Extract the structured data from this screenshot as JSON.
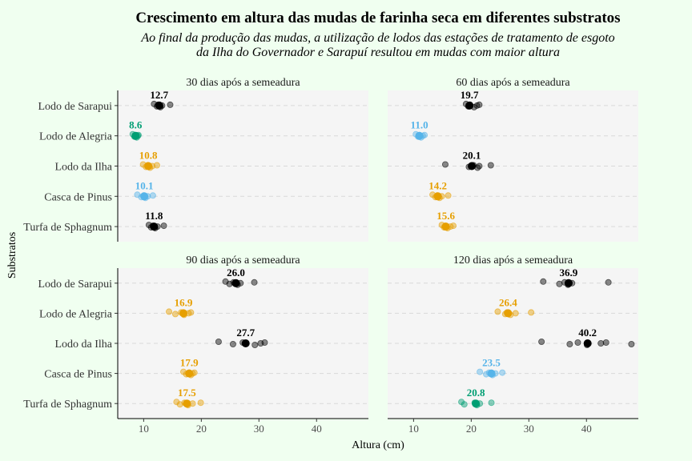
{
  "chart_data": {
    "type": "scatter",
    "title": "Crescimento em altura das mudas de farinha seca em diferentes substratos",
    "subtitle_lines": [
      "Ao final da produção das mudas, a utilização de lodos das estações de tratamento de esgoto",
      "da Ilha do Governador e Sarapuí resultou em mudas com maior altura"
    ],
    "xlabel": "Altura (cm)",
    "ylabel": "Substratos",
    "xlim": [
      5.5,
      49
    ],
    "xticks": [
      10,
      20,
      30,
      40
    ],
    "categories": [
      "Lodo de Sarapui",
      "Lodo de Alegria",
      "Lodo da Ilha",
      "Casca de Pinus",
      "Turfa de Sphagnum"
    ],
    "grid": "horizontal dashed",
    "colors": {
      "black": "#000000",
      "green": "#009E73",
      "orange": "#E69F00",
      "blue": "#56B4E9"
    },
    "panels": [
      {
        "label": "30 dias após a semeadura",
        "groups": [
          {
            "category": "Lodo de Sarapui",
            "mean": 12.7,
            "mean_label": "12.7",
            "color": "black",
            "points": [
              11.8,
              12.3,
              12.5,
              12.9,
              13.2,
              14.6
            ]
          },
          {
            "category": "Lodo de Alegria",
            "mean": 8.6,
            "mean_label": "8.6",
            "color": "green",
            "points": [
              8.1,
              8.4,
              8.6,
              8.8,
              9.0,
              9.1
            ]
          },
          {
            "category": "Lodo da Ilha",
            "mean": 10.8,
            "mean_label": "10.8",
            "color": "orange",
            "points": [
              9.9,
              10.4,
              10.7,
              11.1,
              11.5,
              12.3
            ]
          },
          {
            "category": "Casca de Pinus",
            "mean": 10.1,
            "mean_label": "10.1",
            "color": "blue",
            "points": [
              8.9,
              9.6,
              10.0,
              10.3,
              10.7,
              11.6
            ]
          },
          {
            "category": "Turfa de Sphagnum",
            "mean": 11.8,
            "mean_label": "11.8",
            "color": "black",
            "points": [
              10.9,
              11.3,
              11.6,
              12.0,
              12.4,
              13.5
            ]
          }
        ]
      },
      {
        "label": "60 dias após a semeadura",
        "groups": [
          {
            "category": "Lodo de Sarapui",
            "mean": 19.7,
            "mean_label": "19.7",
            "color": "black",
            "points": [
              19.1,
              19.5,
              19.8,
              20.5,
              21.0,
              21.4
            ]
          },
          {
            "category": "Lodo de Alegria",
            "mean": 11.0,
            "mean_label": "11.0",
            "color": "blue",
            "points": [
              10.4,
              10.8,
              11.0,
              11.3,
              11.6,
              11.9
            ]
          },
          {
            "category": "Lodo da Ilha",
            "mean": 20.1,
            "mean_label": "20.1",
            "color": "black",
            "points": [
              15.5,
              19.6,
              20.4,
              21.1,
              21.4,
              23.4
            ]
          },
          {
            "category": "Casca de Pinus",
            "mean": 14.2,
            "mean_label": "14.2",
            "color": "orange",
            "points": [
              13.3,
              13.8,
              14.1,
              14.5,
              14.9,
              16.0
            ]
          },
          {
            "category": "Turfa de Sphagnum",
            "mean": 15.6,
            "mean_label": "15.6",
            "color": "orange",
            "points": [
              14.9,
              15.3,
              15.5,
              15.9,
              16.4,
              16.9
            ]
          }
        ]
      },
      {
        "label": "90 dias após a semeadura",
        "groups": [
          {
            "category": "Lodo de Sarapui",
            "mean": 26.0,
            "mean_label": "26.0",
            "color": "black",
            "points": [
              24.2,
              24.9,
              25.6,
              26.3,
              26.8,
              29.2
            ]
          },
          {
            "category": "Lodo de Alegria",
            "mean": 16.9,
            "mean_label": "16.9",
            "color": "orange",
            "points": [
              14.4,
              15.5,
              16.5,
              17.0,
              17.8,
              18.2
            ]
          },
          {
            "category": "Lodo da Ilha",
            "mean": 27.7,
            "mean_label": "27.7",
            "color": "black",
            "points": [
              23.0,
              25.5,
              27.2,
              29.3,
              30.3,
              31.0
            ]
          },
          {
            "category": "Casca de Pinus",
            "mean": 17.9,
            "mean_label": "17.9",
            "color": "orange",
            "points": [
              16.9,
              17.4,
              17.9,
              18.2,
              18.5,
              18.8
            ]
          },
          {
            "category": "Turfa de Sphagnum",
            "mean": 17.5,
            "mean_label": "17.5",
            "color": "orange",
            "points": [
              15.7,
              16.3,
              17.1,
              17.7,
              18.5,
              19.9
            ]
          }
        ]
      },
      {
        "label": "120 dias após a semeadura",
        "groups": [
          {
            "category": "Lodo de Sarapui",
            "mean": 36.9,
            "mean_label": "36.9",
            "color": "black",
            "points": [
              32.5,
              35.3,
              36.2,
              36.8,
              37.5,
              43.8
            ]
          },
          {
            "category": "Lodo de Alegria",
            "mean": 26.4,
            "mean_label": "26.4",
            "color": "orange",
            "points": [
              24.6,
              25.9,
              26.2,
              26.8,
              27.7,
              30.4
            ]
          },
          {
            "category": "Lodo da Ilha",
            "mean": 40.2,
            "mean_label": "40.2",
            "color": "black",
            "points": [
              32.2,
              37.1,
              38.5,
              40.1,
              42.5,
              43.4,
              47.8
            ]
          },
          {
            "category": "Casca de Pinus",
            "mean": 23.5,
            "mean_label": "23.5",
            "color": "blue",
            "points": [
              21.5,
              22.6,
              23.1,
              23.7,
              24.2,
              25.4
            ]
          },
          {
            "category": "Turfa de Sphagnum",
            "mean": 20.8,
            "mean_label": "20.8",
            "color": "green",
            "points": [
              18.3,
              18.8,
              20.6,
              21.0,
              21.5,
              23.5
            ]
          }
        ]
      }
    ]
  }
}
